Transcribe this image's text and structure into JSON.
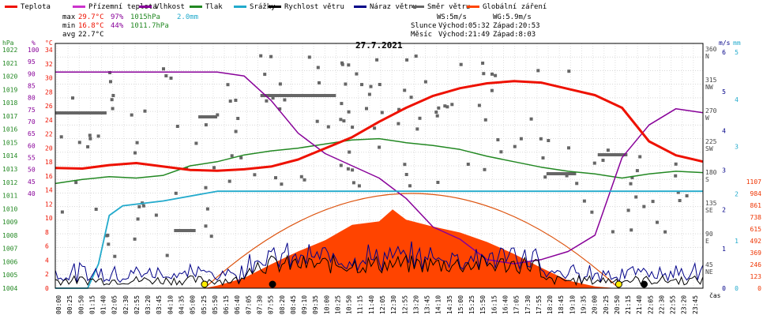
{
  "chart_data": {
    "type": "line",
    "title": "27.7.2021",
    "xlabel": "čas",
    "legend": [
      {
        "label": "Teplota",
        "color": "#ee1100"
      },
      {
        "label": "Přízemní teplota",
        "color": "#cc33cc"
      },
      {
        "label": "Vlhkost",
        "color": "#880099"
      },
      {
        "label": "Tlak",
        "color": "#228822"
      },
      {
        "label": "Srážky",
        "color": "#22aacc"
      },
      {
        "label": "Rychlost větru",
        "color": "#000000"
      },
      {
        "label": "Náraz větru",
        "color": "#000088"
      },
      {
        "label": "Směr větru",
        "color": "#666666"
      },
      {
        "label": "Globální záření",
        "color": "#ff4400"
      }
    ],
    "stats": {
      "max_label": "max",
      "max_temp": "29.7°C",
      "max_hum": "97%",
      "max_press": "1015hPa",
      "max_rain": "2.0mm",
      "min_label": "min",
      "min_temp": "16.8°C",
      "min_hum": "44%",
      "min_press": "1011.7hPa",
      "avg_label": "avg",
      "avg_temp": "22.7°C",
      "ws": "WS:5m/s",
      "wg": "WG:5.9m/s",
      "sun_label": "Slunce",
      "sun_rise": "Východ:05:32",
      "sun_set": "Západ:20:53",
      "moon_label": "Měsíc",
      "moon_rise": "Východ:21:49",
      "moon_set": "Západ:8:03"
    },
    "axes": {
      "hpa_unit": "hPa",
      "pct_unit": "%",
      "temp_unit": "°C",
      "wind_unit": "m/s",
      "rain_unit": "mm",
      "hpa_ticks": [
        "1022",
        "1021",
        "1020",
        "1019",
        "1018",
        "1017",
        "1016",
        "1015",
        "1014",
        "1013",
        "1012",
        "1011",
        "1010",
        "1009",
        "1008",
        "1007",
        "1006",
        "1005",
        "1004"
      ],
      "pct_ticks": [
        "100",
        "95",
        "90",
        "85",
        "80",
        "75",
        "70",
        "65",
        "60",
        "55",
        "50",
        "45",
        "40"
      ],
      "temp_ticks": [
        "34",
        "32",
        "30",
        "28",
        "26",
        "24",
        "22",
        "20",
        "18",
        "16",
        "14",
        "12",
        "10",
        "8",
        "6",
        "4",
        "2",
        "0"
      ],
      "dir_ticks": [
        {
          "deg": "360",
          "name": "N"
        },
        {
          "deg": "315",
          "name": "NW"
        },
        {
          "deg": "270",
          "name": "W"
        },
        {
          "deg": "225",
          "name": "SW"
        },
        {
          "deg": "180",
          "name": "S"
        },
        {
          "deg": "135",
          "name": "SE"
        },
        {
          "deg": "90",
          "name": "E"
        },
        {
          "deg": "45",
          "name": "NE"
        }
      ],
      "wind_ticks": [
        "6",
        "5",
        "4",
        "3",
        "2",
        "1",
        "0"
      ],
      "rain_ticks": [
        "5",
        "4",
        "3",
        "2",
        "1",
        "0"
      ],
      "rad_ticks": [
        "1107",
        "984",
        "861",
        "738",
        "615",
        "492",
        "369",
        "246",
        "123",
        "0"
      ],
      "time_ticks": [
        "00:00",
        "00:25",
        "00:50",
        "01:15",
        "01:40",
        "02:05",
        "02:30",
        "02:55",
        "03:20",
        "03:45",
        "04:10",
        "04:35",
        "05:00",
        "05:25",
        "05:50",
        "06:15",
        "06:40",
        "07:05",
        "07:30",
        "07:55",
        "08:20",
        "08:45",
        "09:10",
        "09:35",
        "10:00",
        "10:25",
        "10:50",
        "11:15",
        "11:40",
        "12:05",
        "12:30",
        "12:55",
        "13:20",
        "13:45",
        "14:10",
        "14:35",
        "15:00",
        "15:25",
        "15:50",
        "16:15",
        "16:40",
        "17:05",
        "17:30",
        "17:55",
        "18:20",
        "18:45",
        "19:10",
        "19:35",
        "20:00",
        "20:25",
        "20:50",
        "21:15",
        "21:40",
        "22:05",
        "22:30",
        "22:55",
        "23:20",
        "23:45"
      ]
    },
    "ylim_temp": [
      0,
      35
    ],
    "ylim_humidity": [
      40,
      100
    ],
    "ylim_pressure": [
      1004,
      1022
    ],
    "ylim_wind": [
      0,
      6
    ],
    "ylim_radiation": [
      0,
      1107
    ],
    "series": [
      {
        "name": "Teplota",
        "color": "#ee1100",
        "unit": "°C",
        "x": [
          0,
          1,
          2,
          3,
          4,
          5,
          6,
          7,
          8,
          9,
          10,
          11,
          12,
          13,
          14,
          15,
          16,
          17,
          18,
          19,
          20,
          21,
          22,
          23,
          24
        ],
        "values": [
          17.2,
          17.1,
          17.6,
          17.9,
          17.4,
          16.9,
          16.8,
          17.0,
          17.4,
          18.4,
          20.0,
          21.6,
          23.8,
          25.8,
          27.5,
          28.6,
          29.3,
          29.6,
          29.4,
          28.5,
          27.6,
          25.8,
          21.0,
          19.0,
          18.1
        ]
      },
      {
        "name": "Vlhkost",
        "color": "#880099",
        "unit": "%",
        "x": [
          0,
          1,
          2,
          3,
          4,
          5,
          6,
          7,
          8,
          9,
          10,
          11,
          12,
          13,
          14,
          15,
          16,
          17,
          18,
          19,
          20,
          21,
          22,
          23,
          24
        ],
        "values": [
          93,
          93,
          93,
          93,
          93,
          93,
          93,
          92,
          86,
          78,
          73,
          70,
          67,
          62,
          55,
          52,
          47,
          46,
          47,
          49,
          53,
          72,
          80,
          84,
          83
        ]
      },
      {
        "name": "Tlak",
        "color": "#228822",
        "unit": "hPa",
        "x": [
          0,
          1,
          2,
          3,
          4,
          5,
          6,
          7,
          8,
          9,
          10,
          11,
          12,
          13,
          14,
          15,
          16,
          17,
          18,
          19,
          20,
          21,
          22,
          23,
          24
        ],
        "values": [
          1011.7,
          1012.0,
          1012.2,
          1012.1,
          1012.3,
          1013.0,
          1013.3,
          1013.8,
          1014.1,
          1014.3,
          1014.6,
          1014.9,
          1015.0,
          1014.7,
          1014.5,
          1014.2,
          1013.7,
          1013.3,
          1012.9,
          1012.6,
          1012.4,
          1012.1,
          1012.4,
          1012.6,
          1012.5
        ]
      },
      {
        "name": "Srážky",
        "color": "#22aacc",
        "unit": "mm",
        "x": [
          0,
          1.2,
          1.6,
          2.0,
          2.5,
          4.0,
          6.0,
          12.0,
          18.0,
          24.0
        ],
        "values": [
          0,
          0,
          0.5,
          1.5,
          1.7,
          1.8,
          2.0,
          2.0,
          2.0,
          2.0
        ]
      },
      {
        "name": "Globální záření",
        "color": "#ff4400",
        "unit": "W/m2",
        "x": [
          5.5,
          6,
          7,
          8,
          9,
          10,
          11,
          12,
          12.5,
          13,
          14,
          15,
          16,
          17,
          18,
          19,
          20,
          20.8
        ],
        "values": [
          0,
          30,
          120,
          280,
          430,
          560,
          740,
          780,
          920,
          800,
          720,
          650,
          540,
          400,
          240,
          90,
          20,
          0
        ]
      }
    ]
  }
}
